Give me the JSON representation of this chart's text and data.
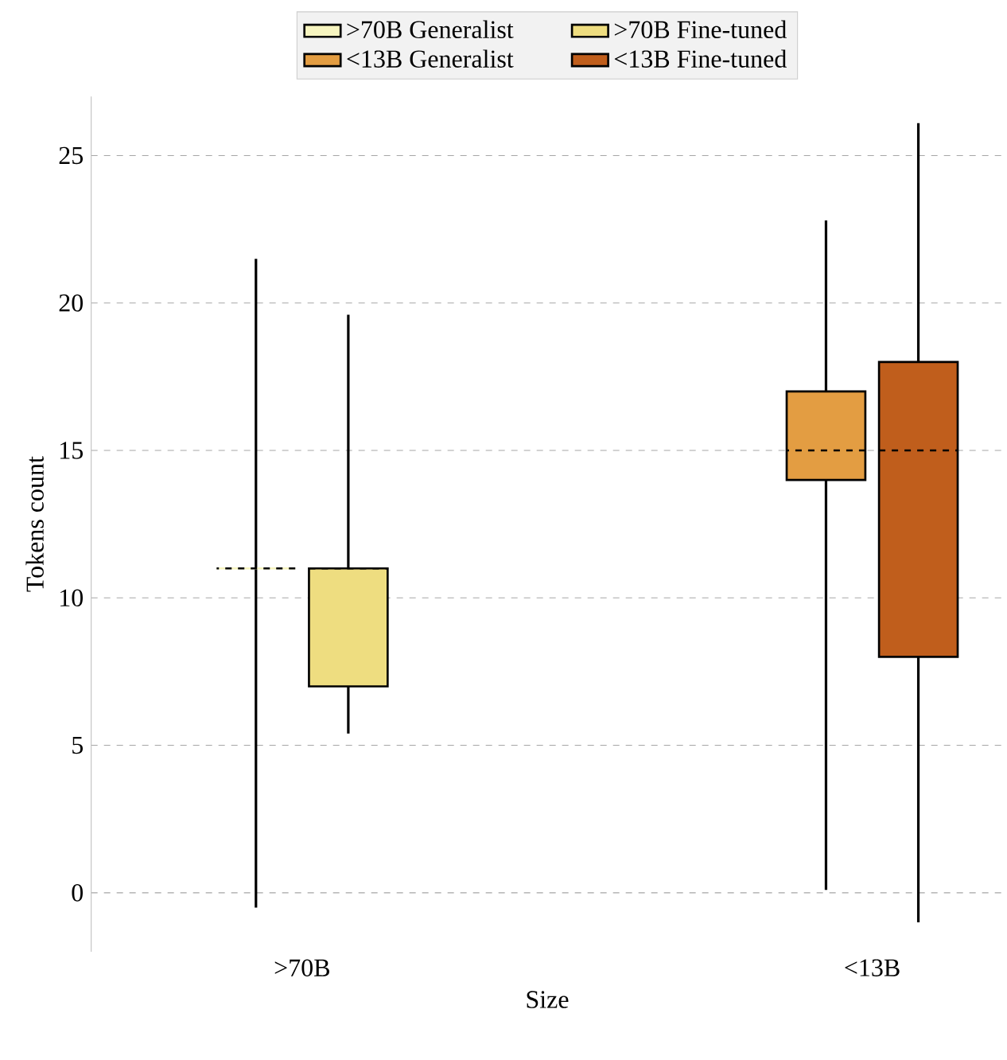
{
  "chart_data": {
    "type": "box",
    "xlabel": "Size",
    "ylabel": "Tokens count",
    "categories": [
      ">70B",
      "<13B"
    ],
    "series": [
      {
        "name": ">70B Generalist",
        "color": "#f7f5c0",
        "boxes": [
          {
            "low": -0.5,
            "q1": 11,
            "median": 11,
            "q3": 11,
            "high": 21.5
          },
          null
        ]
      },
      {
        "name": ">70B Fine-tuned",
        "color": "#eedd80",
        "boxes": [
          {
            "low": 5.4,
            "q1": 7,
            "median": 11,
            "q3": 11,
            "high": 19.6
          },
          null
        ]
      },
      {
        "name": "<13B Generalist",
        "color": "#e39d42",
        "boxes": [
          null,
          {
            "low": 0.1,
            "q1": 14,
            "median": 15,
            "q3": 17,
            "high": 22.8
          }
        ]
      },
      {
        "name": "<13B Fine-tuned",
        "color": "#c05e1c",
        "boxes": [
          null,
          {
            "low": -1,
            "q1": 8,
            "median": 15,
            "q3": 18,
            "high": 26.1
          }
        ]
      }
    ],
    "ylim": [
      -2,
      27
    ],
    "yticks": [
      0,
      5,
      10,
      15,
      20,
      25
    ],
    "grid": "y",
    "legend": "top"
  }
}
